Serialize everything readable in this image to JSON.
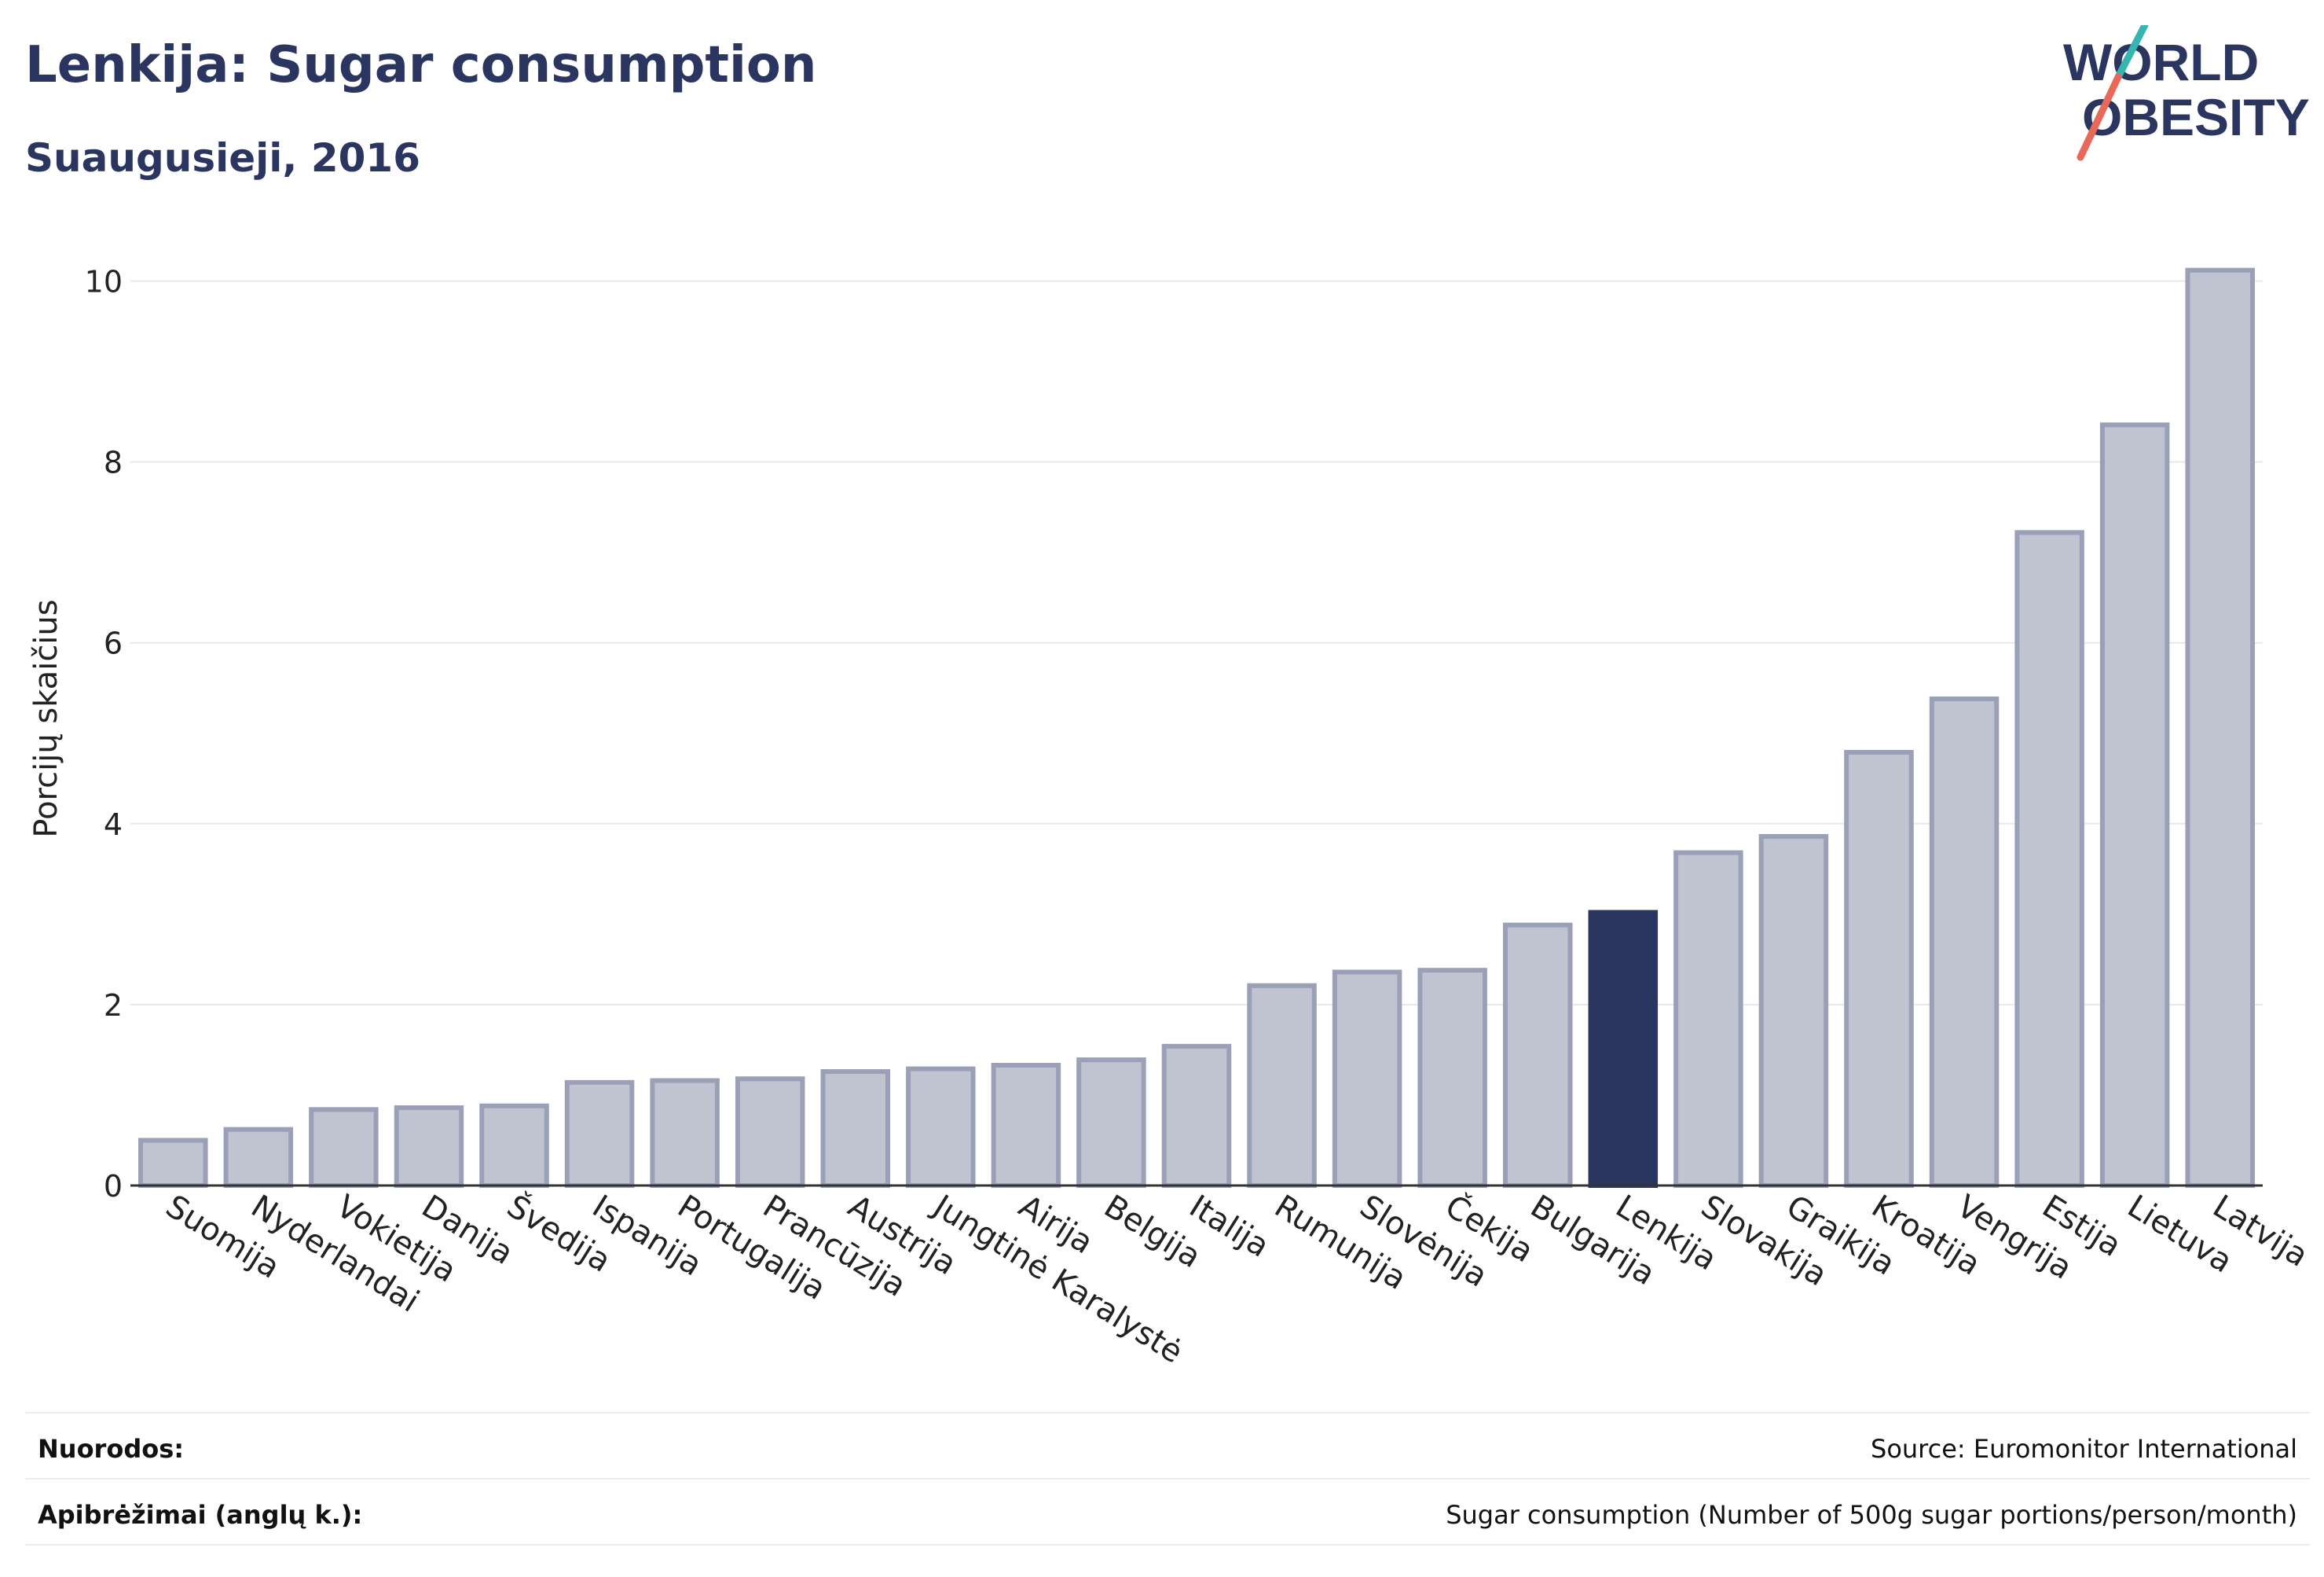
{
  "header": {
    "title": "Lenkija: Sugar consumption",
    "subtitle": "Suaugusieji, 2016"
  },
  "logo": {
    "line1": "WORLD",
    "line2": "OBESITY",
    "accent_colors": [
      "#35b6b0",
      "#e8695a"
    ]
  },
  "chart_data": {
    "type": "bar",
    "title": "Lenkija: Sugar consumption",
    "subtitle": "Suaugusieji, 2016",
    "ylabel": "Porcijų skaičius",
    "xlabel": "",
    "ylim": [
      0,
      10.5
    ],
    "yticks": [
      0,
      2,
      4,
      6,
      8,
      10
    ],
    "grid": true,
    "highlight": "Lenkija",
    "colors": {
      "bar": "#c0c3d0",
      "bar_border": "#9aa0b8",
      "highlight": "#2a3560",
      "grid": "#e6e8ef",
      "axis": "#333333"
    },
    "categories": [
      "Suomija",
      "Nyderlandai",
      "Vokietija",
      "Danija",
      "Švedija",
      "Ispanija",
      "Portugalija",
      "Prancūzija",
      "Austrija",
      "Jungtinė Karalystė",
      "Airija",
      "Belgija",
      "Italija",
      "Rumunija",
      "Slovėnija",
      "Čekija",
      "Bulgarija",
      "Lenkija",
      "Slovakija",
      "Graikija",
      "Kroatija",
      "Vengrija",
      "Estija",
      "Lietuva",
      "Latvija"
    ],
    "values": [
      0.5,
      0.62,
      0.84,
      0.86,
      0.88,
      1.14,
      1.16,
      1.18,
      1.26,
      1.29,
      1.33,
      1.39,
      1.54,
      2.21,
      2.36,
      2.38,
      2.88,
      3.02,
      3.68,
      3.86,
      4.79,
      5.38,
      7.22,
      8.41,
      10.12
    ]
  },
  "footer": {
    "references_label": "Nuorodos:",
    "references_value": "Source: Euromonitor International",
    "definitions_label": "Apibrėžimai (anglų k.):",
    "definitions_value": "Sugar consumption (Number of 500g sugar portions/person/month)"
  }
}
